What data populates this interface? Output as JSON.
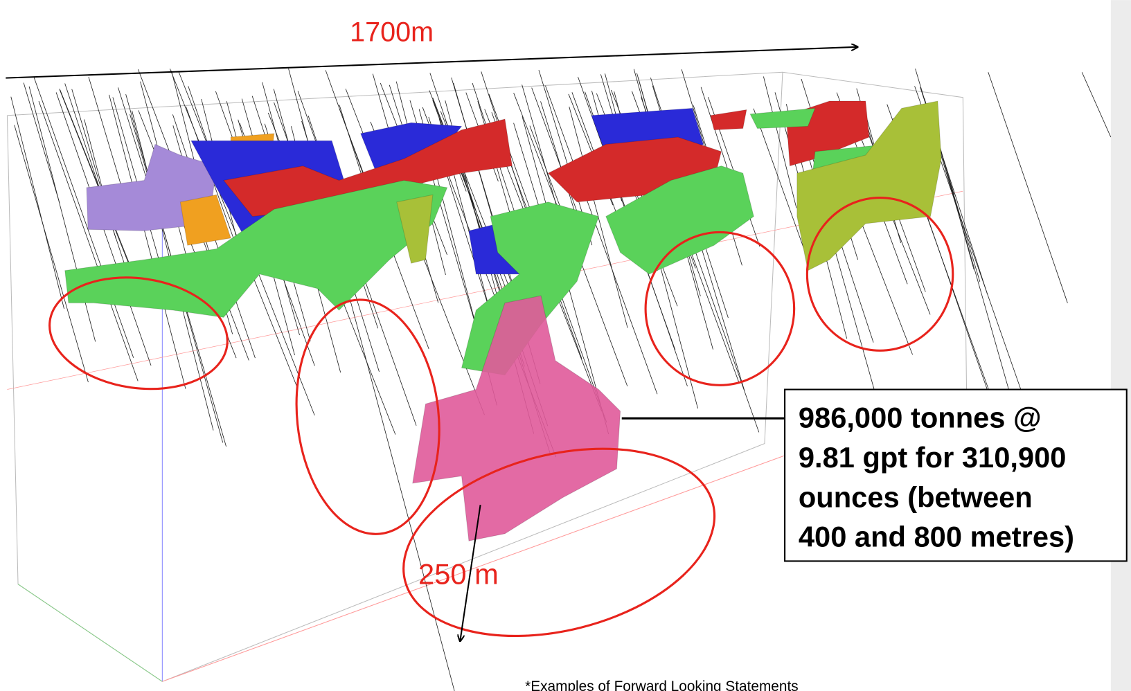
{
  "annotations": {
    "length_label": "1700m",
    "depth_label": "250 m"
  },
  "callout": {
    "lines": [
      "986,000 tonnes @",
      "9.81 gpt for 310,900",
      "ounces (between",
      "400 and 800 metres)"
    ]
  },
  "footer": "*Examples of Forward Looking Statements"
}
